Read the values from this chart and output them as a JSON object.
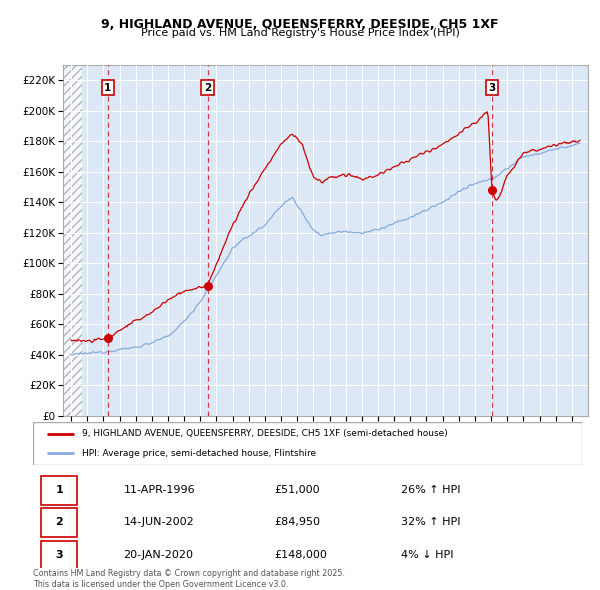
{
  "title_line1": "9, HIGHLAND AVENUE, QUEENSFERRY, DEESIDE, CH5 1XF",
  "title_line2": "Price paid vs. HM Land Registry's House Price Index (HPI)",
  "background_color": "#ffffff",
  "plot_bg_color": "#dce8f5",
  "grid_color": "#ffffff",
  "red_color": "#cc0000",
  "blue_color": "#88aadd",
  "sale_dates_num": [
    1996.27,
    2002.45,
    2020.05
  ],
  "sale_prices": [
    51000,
    84950,
    148000
  ],
  "sale_labels": [
    "1",
    "2",
    "3"
  ],
  "legend_line1": "9, HIGHLAND AVENUE, QUEENSFERRY, DEESIDE, CH5 1XF (semi-detached house)",
  "legend_line2": "HPI: Average price, semi-detached house, Flintshire",
  "table_data": [
    [
      "1",
      "11-APR-1996",
      "£51,000",
      "26% ↑ HPI"
    ],
    [
      "2",
      "14-JUN-2002",
      "£84,950",
      "32% ↑ HPI"
    ],
    [
      "3",
      "20-JAN-2020",
      "£148,000",
      "4% ↓ HPI"
    ]
  ],
  "footer": "Contains HM Land Registry data © Crown copyright and database right 2025.\nThis data is licensed under the Open Government Licence v3.0.",
  "ylim_min": 0,
  "ylim_max": 230000,
  "xlim_min": 1993.5,
  "xlim_max": 2026.0,
  "hpi_key_points": [
    [
      1994.0,
      40000
    ],
    [
      1995.0,
      41000
    ],
    [
      1996.0,
      42000
    ],
    [
      1997.0,
      43500
    ],
    [
      1998.0,
      45000
    ],
    [
      1999.0,
      48000
    ],
    [
      2000.0,
      52000
    ],
    [
      2001.0,
      62000
    ],
    [
      2002.0,
      75000
    ],
    [
      2003.0,
      92000
    ],
    [
      2004.0,
      110000
    ],
    [
      2005.0,
      118000
    ],
    [
      2006.0,
      125000
    ],
    [
      2007.0,
      138000
    ],
    [
      2007.7,
      143000
    ],
    [
      2008.5,
      130000
    ],
    [
      2009.0,
      122000
    ],
    [
      2009.5,
      118000
    ],
    [
      2010.0,
      120000
    ],
    [
      2011.0,
      121000
    ],
    [
      2012.0,
      120000
    ],
    [
      2013.0,
      122000
    ],
    [
      2014.0,
      126000
    ],
    [
      2015.0,
      130000
    ],
    [
      2016.0,
      135000
    ],
    [
      2017.0,
      140000
    ],
    [
      2018.0,
      147000
    ],
    [
      2019.0,
      152000
    ],
    [
      2020.0,
      155000
    ],
    [
      2021.0,
      162000
    ],
    [
      2022.0,
      170000
    ],
    [
      2023.0,
      172000
    ],
    [
      2024.0,
      175000
    ],
    [
      2025.5,
      178000
    ]
  ],
  "prop_key_points": [
    [
      1994.0,
      50000
    ],
    [
      1995.0,
      49000
    ],
    [
      1996.27,
      51000
    ],
    [
      1997.0,
      56000
    ],
    [
      1998.0,
      62000
    ],
    [
      1999.0,
      68000
    ],
    [
      2000.0,
      76000
    ],
    [
      2001.0,
      82000
    ],
    [
      2002.45,
      84950
    ],
    [
      2003.0,
      100000
    ],
    [
      2004.0,
      125000
    ],
    [
      2005.0,
      145000
    ],
    [
      2006.0,
      162000
    ],
    [
      2007.0,
      178000
    ],
    [
      2007.7,
      185000
    ],
    [
      2008.3,
      178000
    ],
    [
      2008.8,
      162000
    ],
    [
      2009.0,
      157000
    ],
    [
      2009.5,
      153000
    ],
    [
      2010.0,
      156000
    ],
    [
      2011.0,
      158000
    ],
    [
      2012.0,
      155000
    ],
    [
      2013.0,
      158000
    ],
    [
      2014.0,
      163000
    ],
    [
      2015.0,
      168000
    ],
    [
      2016.0,
      173000
    ],
    [
      2017.0,
      178000
    ],
    [
      2018.0,
      185000
    ],
    [
      2019.0,
      192000
    ],
    [
      2019.8,
      200000
    ],
    [
      2020.05,
      148000
    ],
    [
      2020.3,
      140000
    ],
    [
      2020.7,
      148000
    ],
    [
      2021.0,
      158000
    ],
    [
      2022.0,
      172000
    ],
    [
      2023.0,
      175000
    ],
    [
      2024.0,
      178000
    ],
    [
      2025.5,
      180000
    ]
  ]
}
